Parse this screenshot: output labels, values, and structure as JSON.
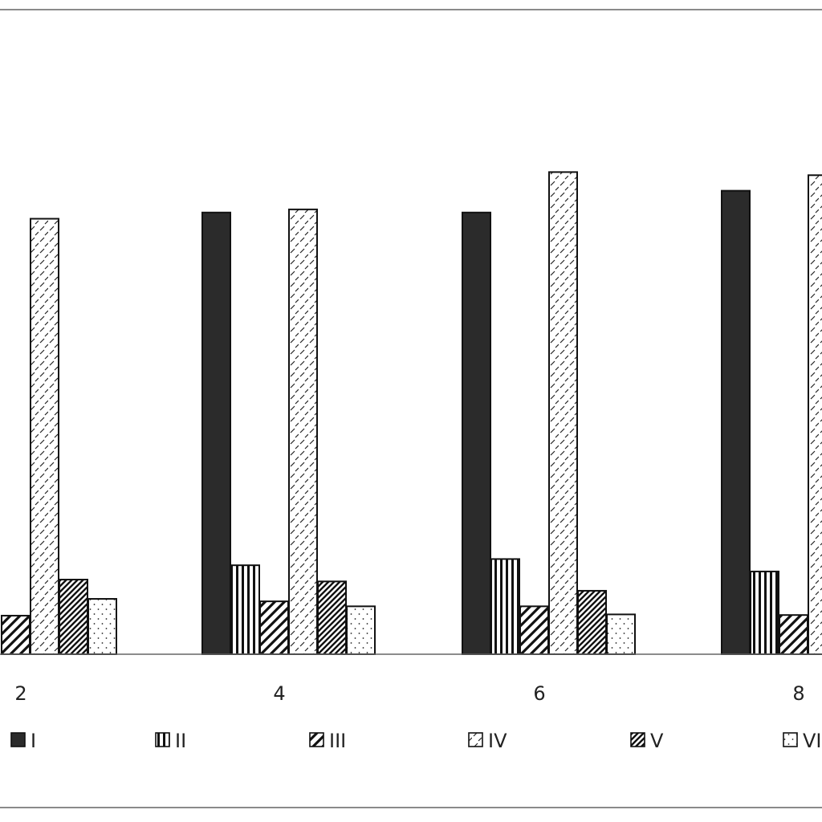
{
  "chart_data": {
    "type": "bar",
    "title": "",
    "xlabel": "",
    "ylabel": "",
    "categories": [
      "2",
      "4",
      "6",
      "8"
    ],
    "ylim": [
      0,
      100
    ],
    "grid": false,
    "legend_position": "bottom",
    "series": [
      {
        "name": "I",
        "pattern": "solid",
        "values": [
          null,
          71,
          71,
          74.5
        ]
      },
      {
        "name": "II",
        "pattern": "vertical",
        "values": [
          null,
          14.3,
          15.3,
          13.3
        ]
      },
      {
        "name": "III",
        "pattern": "diag-wide",
        "values": [
          6.2,
          8.5,
          7.7,
          6.3
        ]
      },
      {
        "name": "IV",
        "pattern": "dash-light",
        "values": [
          70,
          71.5,
          77.5,
          77
        ]
      },
      {
        "name": "V",
        "pattern": "diag-dense",
        "values": [
          12,
          11.7,
          10.2,
          null
        ]
      },
      {
        "name": "VI",
        "pattern": "dots",
        "values": [
          8.9,
          7.7,
          6.4,
          null
        ]
      }
    ],
    "colors": {
      "solid": "#2b2b2b",
      "stroke": "#111111",
      "frame": "#8a8a8a"
    }
  }
}
